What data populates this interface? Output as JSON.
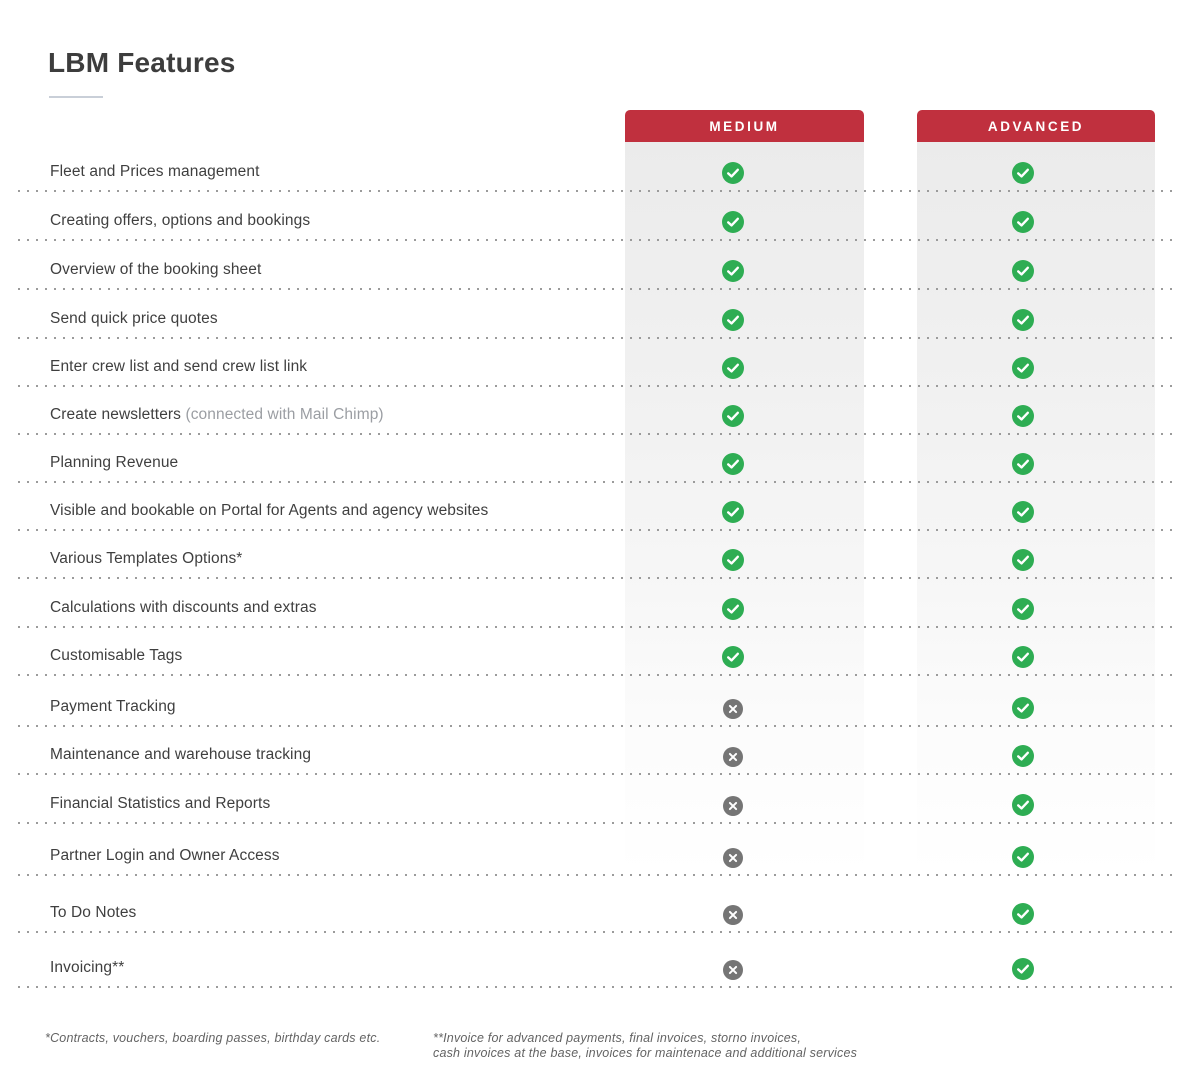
{
  "page_title": "LBM Features",
  "chart_data": {
    "type": "table",
    "title": "LBM Features",
    "columns": [
      "MEDIUM",
      "ADVANCED"
    ],
    "rows": [
      {
        "feature": "Fleet and Prices management",
        "note": "",
        "medium": "check",
        "advanced": "check"
      },
      {
        "feature": "Creating offers, options and bookings",
        "note": "",
        "medium": "check",
        "advanced": "check"
      },
      {
        "feature": "Overview of the booking sheet",
        "note": "",
        "medium": "check",
        "advanced": "check"
      },
      {
        "feature": "Send quick price quotes",
        "note": "",
        "medium": "check",
        "advanced": "check"
      },
      {
        "feature": "Enter crew list and send crew list link",
        "note": "",
        "medium": "check",
        "advanced": "check"
      },
      {
        "feature": "Create newsletters",
        "note": "(connected with Mail Chimp)",
        "medium": "check",
        "advanced": "check"
      },
      {
        "feature": "Planning Revenue",
        "note": "",
        "medium": "check",
        "advanced": "check"
      },
      {
        "feature": "Visible and bookable on Portal for Agents and agency websites",
        "note": "",
        "medium": "check",
        "advanced": "check"
      },
      {
        "feature": "Various Templates Options*",
        "note": "",
        "medium": "check",
        "advanced": "check"
      },
      {
        "feature": "Calculations with discounts and extras",
        "note": "",
        "medium": "check",
        "advanced": "check"
      },
      {
        "feature": "Customisable Tags",
        "note": "",
        "medium": "check",
        "advanced": "check"
      },
      {
        "feature": "Payment Tracking",
        "note": "",
        "medium": "cross",
        "advanced": "check"
      },
      {
        "feature": "Maintenance and warehouse tracking",
        "note": "",
        "medium": "cross",
        "advanced": "check"
      },
      {
        "feature": "Financial Statistics and Reports",
        "note": "",
        "medium": "cross",
        "advanced": "check"
      },
      {
        "feature": "Partner Login and Owner Access",
        "note": "",
        "medium": "cross",
        "advanced": "check"
      },
      {
        "feature": "To Do Notes",
        "note": "",
        "medium": "cross",
        "advanced": "check"
      },
      {
        "feature": "Invoicing**",
        "note": "",
        "medium": "cross",
        "advanced": "check"
      }
    ]
  },
  "footnotes": {
    "left": "*Contracts, vouchers, boarding passes, birthday cards etc.",
    "right_line1": "**Invoice for advanced payments, final invoices, storno invoices,",
    "right_line2": "cash invoices at the base, invoices for maintenace and additional services"
  },
  "icons": {
    "check": "check-icon",
    "cross": "cross-icon"
  },
  "colors": {
    "header_red": "#c0303e",
    "check_green": "#2ead53",
    "cross_gray": "#757575",
    "title_text": "#3d3d3d",
    "row_text": "#3f3f3f",
    "note_text": "#9b9ea3"
  }
}
